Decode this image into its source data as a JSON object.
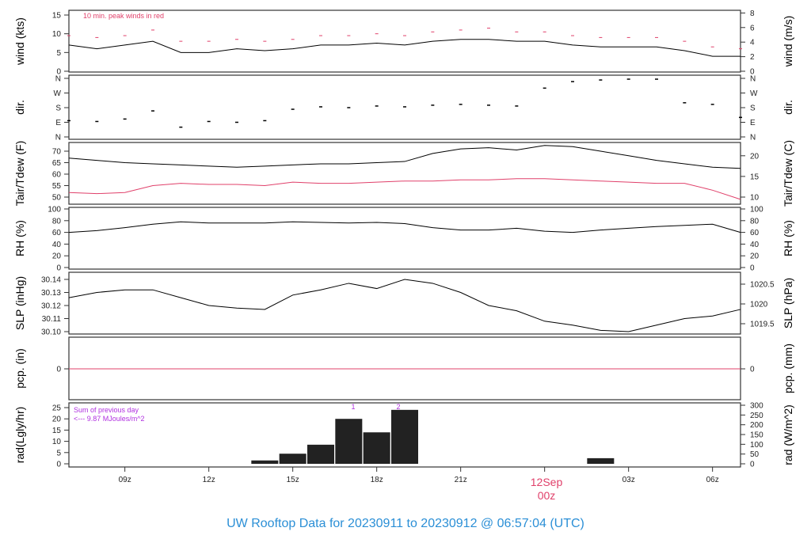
{
  "title": "UW Rooftop Data for 20230911  to  20230912 @ 06:57:04  (UTC)",
  "colors": {
    "title": "#2b8fd6",
    "peak": "#e0406a",
    "date": "#e0406a",
    "rad_note": "#b030e0",
    "line": "#000000"
  },
  "chart_data": [
    {
      "type": "line",
      "panel": "wind",
      "ylabel": "wind (kts)",
      "ylabel_right": "wind (m/s)",
      "ylim": [
        0,
        15
      ],
      "yticks": [
        0,
        5,
        10,
        15
      ],
      "yticks_right": [
        0,
        2,
        4,
        6,
        8
      ],
      "annotation": "10 min. peak winds in red",
      "series": [
        {
          "key": "wind",
          "values": [
            7,
            6,
            7,
            8,
            5,
            5,
            6,
            5.5,
            6,
            7,
            7,
            7.5,
            7,
            8,
            8.5,
            8.5,
            8,
            8,
            7,
            6.5,
            6.5,
            6.5,
            5.5,
            4,
            4
          ]
        },
        {
          "key": "peak",
          "values": [
            9.5,
            9,
            9.5,
            11,
            8,
            8,
            8.5,
            8,
            8.5,
            9.5,
            9.5,
            10,
            9.5,
            10.5,
            11,
            11.5,
            10.5,
            10.5,
            9.5,
            9,
            9,
            9,
            8,
            6.5,
            6
          ]
        }
      ]
    },
    {
      "type": "scatter",
      "panel": "dir",
      "ylabel": "dir.",
      "ylabel_right": "dir.",
      "ylim": [
        0,
        360
      ],
      "yticks": [
        "N",
        "E",
        "S",
        "W",
        "N"
      ],
      "values": [
        100,
        95,
        110,
        160,
        60,
        95,
        90,
        100,
        170,
        185,
        180,
        190,
        185,
        195,
        200,
        195,
        190,
        300,
        340,
        350,
        355,
        355,
        210,
        200,
        120
      ]
    },
    {
      "type": "line",
      "panel": "temp",
      "ylabel": "Tair/Tdew (F)",
      "ylabel_right": "Tair/Tdew (C)",
      "ylim": [
        47,
        74
      ],
      "yticks": [
        50,
        55,
        60,
        65,
        70
      ],
      "yticks_right": [
        10,
        15,
        20
      ],
      "series": [
        {
          "key": "tair",
          "values": [
            67,
            66,
            65,
            64.5,
            64,
            63.5,
            63,
            63.5,
            64,
            64.5,
            64.5,
            65,
            65.5,
            69,
            71,
            71.5,
            70.5,
            72.5,
            72,
            70,
            68,
            66,
            64.5,
            63,
            62.5
          ]
        },
        {
          "key": "tdew",
          "values": [
            52,
            51.5,
            52,
            55,
            56,
            55.5,
            55.5,
            55,
            56.5,
            56,
            56,
            56.5,
            57,
            57,
            57.5,
            57.5,
            58,
            58,
            57.5,
            57,
            56.5,
            56,
            56,
            53,
            49
          ]
        }
      ]
    },
    {
      "type": "line",
      "panel": "rh",
      "ylabel": "RH (%)",
      "ylabel_right": "RH (%)",
      "ylim": [
        0,
        100
      ],
      "yticks": [
        0,
        20,
        40,
        60,
        80,
        100
      ],
      "values": [
        60,
        63,
        68,
        74,
        78,
        76,
        76,
        76,
        78,
        77,
        76,
        77,
        75,
        68,
        64,
        64,
        67,
        62,
        60,
        64,
        67,
        70,
        72,
        74,
        60
      ]
    },
    {
      "type": "line",
      "panel": "slp",
      "ylabel": "SLP (inHg)",
      "ylabel_right": "SLP (hPa)",
      "ylim": [
        30.097,
        30.143
      ],
      "yticks": [
        30.1,
        30.11,
        30.12,
        30.13,
        30.14
      ],
      "yticks_right": [
        1019.5,
        1020,
        1020.5
      ],
      "values": [
        30.126,
        30.13,
        30.132,
        30.132,
        30.126,
        30.12,
        30.118,
        30.117,
        30.128,
        30.132,
        30.137,
        30.133,
        30.14,
        30.137,
        30.13,
        30.12,
        30.116,
        30.108,
        30.105,
        30.101,
        30.1,
        30.105,
        30.11,
        30.112,
        30.117
      ]
    },
    {
      "type": "line",
      "panel": "pcp",
      "ylabel": "pcp. (in)",
      "ylabel_right": "pcp. (mm)",
      "yticks": [
        0
      ],
      "yticks_right": [
        0
      ],
      "values": [
        0,
        0,
        0,
        0,
        0,
        0,
        0,
        0,
        0,
        0,
        0,
        0,
        0,
        0,
        0,
        0,
        0,
        0,
        0,
        0,
        0,
        0,
        0,
        0,
        0
      ]
    },
    {
      "type": "bar",
      "panel": "rad",
      "ylabel": "rad(Lgly/hr)",
      "ylabel_right": "rad (W/m^2)",
      "ylim": [
        0,
        26
      ],
      "yticks": [
        0,
        5,
        10,
        15,
        20,
        25
      ],
      "yticks_right": [
        0,
        50,
        100,
        150,
        200,
        250,
        300
      ],
      "note_line1": "Sum of previous day",
      "note_line2": "<--- 9.87 MJoules/m^2",
      "marker_1": "1",
      "marker_2": "2",
      "values": [
        0,
        0,
        0,
        0,
        0,
        0,
        0,
        1.5,
        4.5,
        8.5,
        20,
        14,
        24,
        null,
        null,
        null,
        null,
        null,
        null,
        2.5,
        0,
        null,
        null,
        null,
        null
      ]
    }
  ],
  "x_axis": {
    "hours_utc": [
      "07",
      "08",
      "09",
      "10",
      "11",
      "12",
      "13",
      "14",
      "15",
      "16",
      "17",
      "18",
      "19",
      "20",
      "21",
      "22",
      "23",
      "00",
      "01",
      "02",
      "03",
      "04",
      "05",
      "06",
      "07"
    ],
    "tick_labels": [
      "09z",
      "12z",
      "15z",
      "18z",
      "21z",
      "03z",
      "06z"
    ],
    "date_label": "12Sep",
    "date_sub": "00z"
  }
}
